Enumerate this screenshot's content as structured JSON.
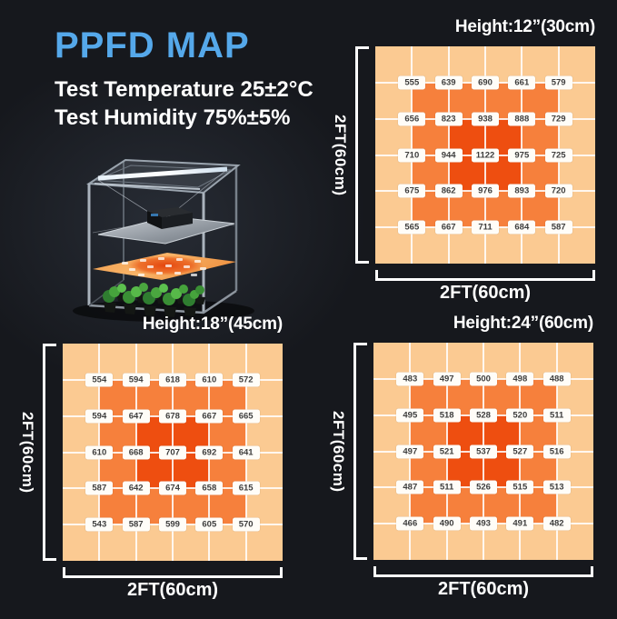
{
  "header": {
    "title": "PPFD MAP",
    "line1": "Test Temperature 25±2°C",
    "line2": "Test Humidity 75%±5%"
  },
  "colors": {
    "title_blue": "#55a8ea",
    "heat_low": "#fbca92",
    "heat_mid": "#f6803c",
    "heat_high": "#ee4e10",
    "gridline": "rgba(255,255,255,0.85)",
    "chip_bg": "#fffdf8",
    "chip_text": "#3d3d3d",
    "background": "#16181d"
  },
  "illustration": {
    "name": "grow-tent-with-led-light-and-plants"
  },
  "chart_data": [
    {
      "type": "heatmap",
      "title": "Height:12”(30cm)",
      "xlabel": "2FT(60cm)",
      "ylabel": "2FT(60cm)",
      "rows": 5,
      "cols": 5,
      "unit": "PPFD (µmol/m²/s)",
      "values": [
        [
          555,
          639,
          690,
          661,
          579
        ],
        [
          656,
          823,
          938,
          888,
          729
        ],
        [
          710,
          944,
          1122,
          975,
          725
        ],
        [
          675,
          862,
          976,
          893,
          720
        ],
        [
          565,
          667,
          711,
          684,
          587
        ]
      ]
    },
    {
      "type": "heatmap",
      "title": "Height:18”(45cm)",
      "xlabel": "2FT(60cm)",
      "ylabel": "2FT(60cm)",
      "rows": 5,
      "cols": 5,
      "unit": "PPFD (µmol/m²/s)",
      "values": [
        [
          554,
          594,
          618,
          610,
          572
        ],
        [
          594,
          647,
          678,
          667,
          665
        ],
        [
          610,
          668,
          707,
          692,
          641
        ],
        [
          587,
          642,
          674,
          658,
          615
        ],
        [
          543,
          587,
          599,
          605,
          570
        ]
      ]
    },
    {
      "type": "heatmap",
      "title": "Height:24”(60cm)",
      "xlabel": "2FT(60cm)",
      "ylabel": "2FT(60cm)",
      "rows": 5,
      "cols": 5,
      "unit": "PPFD (µmol/m²/s)",
      "values": [
        [
          483,
          497,
          500,
          498,
          488
        ],
        [
          495,
          518,
          528,
          520,
          511
        ],
        [
          497,
          521,
          537,
          527,
          516
        ],
        [
          487,
          511,
          526,
          515,
          513
        ],
        [
          466,
          490,
          493,
          491,
          482
        ]
      ]
    }
  ]
}
